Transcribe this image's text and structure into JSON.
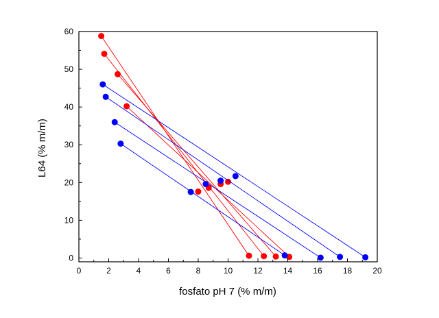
{
  "chart_data": {
    "type": "scatter",
    "title": "",
    "xlabel": "fosfato pH 7 (% m/m)",
    "ylabel": "L64 (% m/m)",
    "xlim": [
      0,
      20
    ],
    "ylim": [
      -1,
      60
    ],
    "xticks": [
      0,
      2,
      4,
      6,
      8,
      10,
      12,
      14,
      16,
      18,
      20
    ],
    "yticks": [
      0,
      10,
      20,
      30,
      40,
      50,
      60
    ],
    "grid": false,
    "legend": "none",
    "series": [
      {
        "color": "#ff0000",
        "tie_lines": [
          {
            "top": [
              1.5,
              58.8
            ],
            "mid": [
              10.0,
              20.2
            ],
            "bottom": [
              11.4,
              0.6
            ]
          },
          {
            "top": [
              1.7,
              54.1
            ],
            "mid": [
              9.5,
              19.6
            ],
            "bottom": [
              12.4,
              0.5
            ]
          },
          {
            "top": [
              2.6,
              48.7
            ],
            "mid": [
              8.7,
              18.6
            ],
            "bottom": [
              13.2,
              0.4
            ]
          },
          {
            "top": [
              3.2,
              40.2
            ],
            "mid": [
              8.0,
              17.6
            ],
            "bottom": [
              14.1,
              0.3
            ]
          }
        ]
      },
      {
        "color": "#0000ff",
        "tie_lines": [
          {
            "top": [
              1.6,
              46.0
            ],
            "mid": [
              10.5,
              21.7
            ],
            "bottom": [
              19.2,
              0.2
            ]
          },
          {
            "top": [
              1.8,
              42.7
            ],
            "mid": [
              9.5,
              20.5
            ],
            "bottom": [
              17.5,
              0.3
            ]
          },
          {
            "top": [
              2.4,
              36.0
            ],
            "mid": [
              8.5,
              19.6
            ],
            "bottom": [
              16.2,
              0.1
            ]
          },
          {
            "top": [
              2.8,
              30.3
            ],
            "mid": [
              7.5,
              17.5
            ],
            "bottom": [
              13.8,
              0.7
            ]
          }
        ]
      }
    ]
  }
}
